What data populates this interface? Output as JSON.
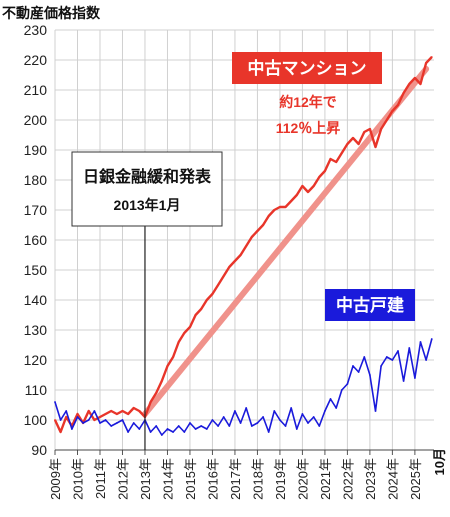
{
  "chart_data": {
    "type": "line",
    "ylabel": "不動産価格指数",
    "ylim": [
      90,
      230
    ],
    "yticks": [
      90,
      100,
      110,
      120,
      130,
      140,
      150,
      160,
      170,
      180,
      190,
      200,
      210,
      220,
      230
    ],
    "xlim": [
      2009.0,
      2025.85
    ],
    "xticks": [
      "2009年",
      "2010年",
      "2011年",
      "2012年",
      "2013年",
      "2014年",
      "2015年",
      "2016年",
      "2017年",
      "2018年",
      "2019年",
      "2020年",
      "2021年",
      "2022年",
      "2023年",
      "2024年",
      "2025年"
    ],
    "end_label": "10月",
    "grid": true,
    "series": [
      {
        "name": "中古マンション",
        "color": "#e8352a",
        "x": [
          2009.0,
          2009.25,
          2009.5,
          2009.75,
          2010.0,
          2010.25,
          2010.5,
          2010.75,
          2011.0,
          2011.25,
          2011.5,
          2011.75,
          2012.0,
          2012.25,
          2012.5,
          2012.75,
          2013.0,
          2013.25,
          2013.5,
          2013.75,
          2014.0,
          2014.25,
          2014.5,
          2014.75,
          2015.0,
          2015.25,
          2015.5,
          2015.75,
          2016.0,
          2016.25,
          2016.5,
          2016.75,
          2017.0,
          2017.25,
          2017.5,
          2017.75,
          2018.0,
          2018.25,
          2018.5,
          2018.75,
          2019.0,
          2019.25,
          2019.5,
          2019.75,
          2020.0,
          2020.25,
          2020.5,
          2020.75,
          2021.0,
          2021.25,
          2021.5,
          2021.75,
          2022.0,
          2022.25,
          2022.5,
          2022.75,
          2023.0,
          2023.25,
          2023.5,
          2023.75,
          2024.0,
          2024.25,
          2024.5,
          2024.75,
          2025.0,
          2025.25,
          2025.5,
          2025.75
        ],
        "y": [
          100,
          96,
          101,
          98,
          102,
          99,
          103,
          100,
          101,
          102,
          103,
          102,
          103,
          102,
          104,
          103,
          101,
          106,
          109,
          113,
          118,
          121,
          126,
          129,
          131,
          135,
          137,
          140,
          142,
          145,
          148,
          151,
          153,
          155,
          158,
          161,
          163,
          165,
          168,
          170,
          171,
          171,
          173,
          175,
          178,
          176,
          178,
          181,
          183,
          187,
          186,
          189,
          192,
          194,
          192,
          196,
          197,
          191,
          197,
          200,
          203,
          205,
          209,
          212,
          214,
          212,
          219,
          221
        ]
      },
      {
        "name": "中古戸建",
        "color": "#1a1adb",
        "x": [
          2009.0,
          2009.25,
          2009.5,
          2009.75,
          2010.0,
          2010.25,
          2010.5,
          2010.75,
          2011.0,
          2011.25,
          2011.5,
          2011.75,
          2012.0,
          2012.25,
          2012.5,
          2012.75,
          2013.0,
          2013.25,
          2013.5,
          2013.75,
          2014.0,
          2014.25,
          2014.5,
          2014.75,
          2015.0,
          2015.25,
          2015.5,
          2015.75,
          2016.0,
          2016.25,
          2016.5,
          2016.75,
          2017.0,
          2017.25,
          2017.5,
          2017.75,
          2018.0,
          2018.25,
          2018.5,
          2018.75,
          2019.0,
          2019.25,
          2019.5,
          2019.75,
          2020.0,
          2020.25,
          2020.5,
          2020.75,
          2021.0,
          2021.25,
          2021.5,
          2021.75,
          2022.0,
          2022.25,
          2022.5,
          2022.75,
          2023.0,
          2023.25,
          2023.5,
          2023.75,
          2024.0,
          2024.25,
          2024.5,
          2024.75,
          2025.0,
          2025.25,
          2025.5,
          2025.75
        ],
        "y": [
          106,
          100,
          103,
          97,
          101,
          99,
          100,
          103,
          99,
          100,
          98,
          99,
          100,
          96,
          99,
          97,
          100,
          96,
          98,
          95,
          97,
          96,
          98,
          96,
          99,
          97,
          98,
          97,
          100,
          98,
          101,
          98,
          103,
          99,
          104,
          98,
          99,
          101,
          96,
          103,
          100,
          98,
          104,
          97,
          102,
          99,
          101,
          98,
          103,
          107,
          104,
          110,
          112,
          118,
          116,
          121,
          115,
          103,
          118,
          121,
          120,
          123,
          113,
          124,
          114,
          126,
          120,
          127
        ]
      }
    ],
    "annotations": {
      "mansion_label": "中古マンション",
      "growth_line1": "約12年で",
      "growth_line2": "112％上昇",
      "detached_label": "中古戸建",
      "event_line1": "日銀金融緩和発表",
      "event_line2": "2013年1月",
      "event_x": 2013.0,
      "trend_start": [
        2013.0,
        102
      ],
      "trend_end": [
        2025.5,
        217
      ]
    },
    "colors": {
      "mansion": "#e8352a",
      "mansion_trend": "#f0928b",
      "detached": "#1a1adb",
      "label_bg_red": "#e8352a",
      "label_bg_blue": "#1a1adb"
    }
  }
}
